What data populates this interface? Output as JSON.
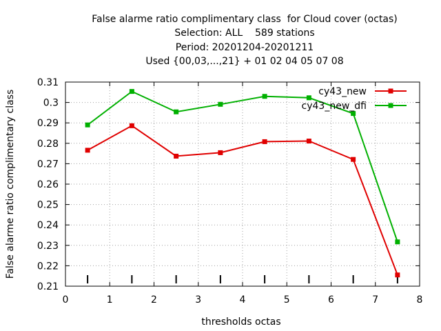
{
  "chart_data": {
    "type": "line",
    "title_lines": [
      "False alarme ratio complimentary class  for Cloud cover (octas)",
      "Selection: ALL    589 stations",
      "Period: 20201204-20201211",
      "Used {00,03,...,21} + 01 02 04 05 07 08"
    ],
    "xlabel": "thresholds octas",
    "ylabel": "False alarme ratio complimentary class",
    "xlim": [
      0,
      8
    ],
    "ylim": [
      0.21,
      0.31
    ],
    "xticks": [
      0,
      1,
      2,
      3,
      4,
      5,
      6,
      7,
      8
    ],
    "xtick_labels": [
      "0",
      "1",
      "2",
      "3",
      "4",
      "5",
      "6",
      "7",
      "8"
    ],
    "yticks": [
      0.21,
      0.22,
      0.23,
      0.24,
      0.25,
      0.26,
      0.27,
      0.28,
      0.29,
      0.3,
      0.31
    ],
    "ytick_labels": [
      "0.21",
      "0.22",
      "0.23",
      "0.24",
      "0.25",
      "0.26",
      "0.27",
      "0.28",
      "0.29",
      "0.3",
      "0.31"
    ],
    "grid": true,
    "legend_position": "top-right",
    "x": [
      0.5,
      1.5,
      2.5,
      3.5,
      4.5,
      5.5,
      6.5,
      7.5
    ],
    "series": [
      {
        "name": "cy43_new",
        "color": "#e00000",
        "values": [
          0.2766,
          0.2886,
          0.2737,
          0.2754,
          0.2808,
          0.2811,
          0.2721,
          0.2155
        ]
      },
      {
        "name": "cy43_new_dfi",
        "color": "#00b000",
        "values": [
          0.289,
          0.3054,
          0.2954,
          0.2991,
          0.303,
          0.3023,
          0.2946,
          0.2317
        ]
      }
    ],
    "bottom_tick_marks_x": [
      0.5,
      1.5,
      2.5,
      3.5,
      4.5,
      5.5,
      6.5,
      7.5
    ]
  }
}
